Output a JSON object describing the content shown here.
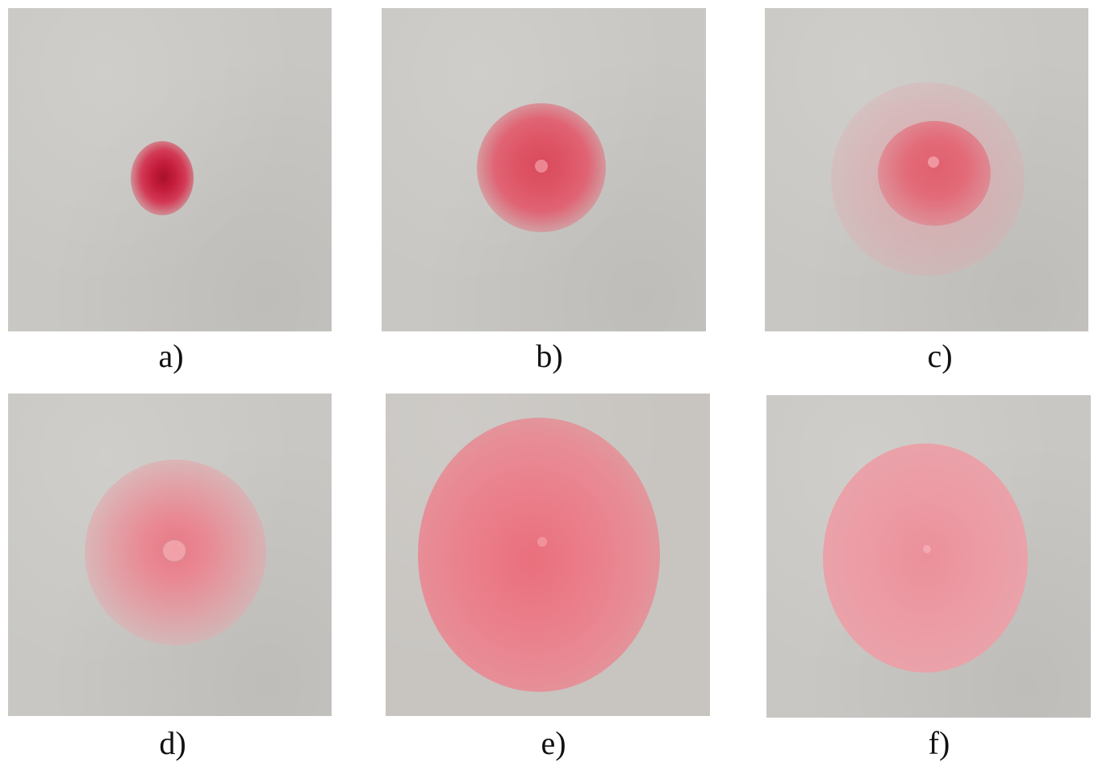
{
  "figure": {
    "panels": [
      {
        "id": "a",
        "label": "a)",
        "spot_color": "#c41d3c"
      },
      {
        "id": "b",
        "label": "b)",
        "spot_color": "#de5566"
      },
      {
        "id": "c",
        "label": "c)",
        "spot_color": "#e36a78"
      },
      {
        "id": "d",
        "label": "d)",
        "spot_color": "#e98792"
      },
      {
        "id": "e",
        "label": "e)",
        "spot_color": "#ea7d89"
      },
      {
        "id": "f",
        "label": "f)",
        "spot_color": "#ec9ca5"
      }
    ],
    "paper_color": "#c9c7c3"
  }
}
